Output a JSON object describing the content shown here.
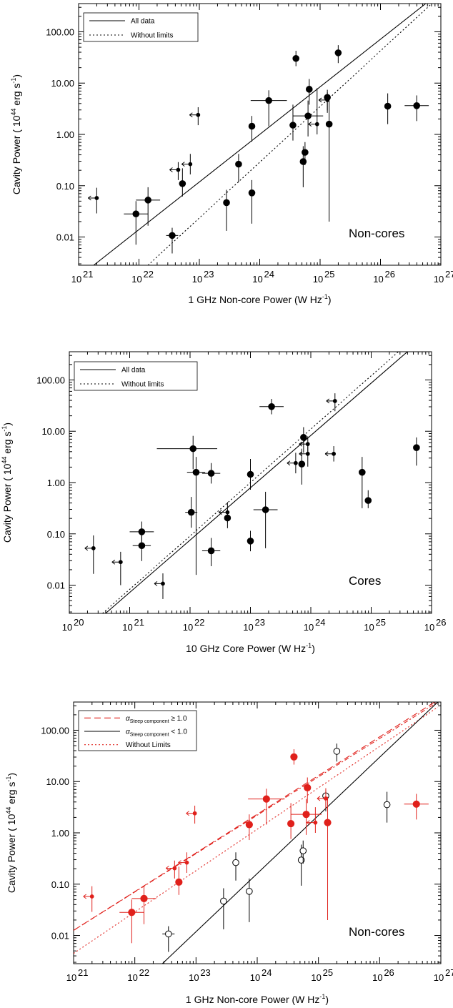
{
  "chart_data": [
    {
      "type": "scatter",
      "label": "Non-cores",
      "xlabel_main": "1 GHz Non-core Power (W Hz",
      "xlabel_sup": "-1",
      "xlabel_end": ")",
      "ylabel_main": "Cavity Power ( 10",
      "ylabel_sup": "44",
      "ylabel_end": " erg s",
      "ylabel_sup2": "-1",
      "ylabel_close": ")",
      "x_log_range": [
        21,
        27
      ],
      "y_log_range": [
        -2.55,
        2.55
      ],
      "x_tick_labels": [
        "10",
        "10",
        "10",
        "10",
        "10",
        "10",
        "10"
      ],
      "x_tick_exps": [
        "21",
        "22",
        "23",
        "24",
        "25",
        "26",
        "27"
      ],
      "y_tick_labels": [
        "0.01",
        "0.10",
        "1.00",
        "10.00",
        "100.00"
      ],
      "legend": [
        {
          "label": "All data",
          "style": "solid",
          "color": "#000000"
        },
        {
          "label": "Without limits",
          "style": "dotted",
          "color": "#000000"
        }
      ],
      "lines": [
        {
          "style": "solid",
          "color": "#000000",
          "x": [
            21.25,
            26.75
          ],
          "y": [
            -2.55,
            2.55
          ]
        },
        {
          "style": "dotted",
          "color": "#000000",
          "x": [
            22.15,
            26.85
          ],
          "y": [
            -2.55,
            2.55
          ]
        }
      ],
      "points": [
        {
          "x": 21.95,
          "y": -1.55,
          "xlo": 0.2,
          "xhi": 0.2,
          "ylo": 0.6,
          "yhi": 0.25
        },
        {
          "x": 22.15,
          "y": -1.28,
          "xlo": 0.2,
          "xhi": 0.2,
          "ylo": 0.5,
          "yhi": 0.25
        },
        {
          "x": 22.55,
          "y": -1.97,
          "xlo": 0.1,
          "xhi": 0.1,
          "ylo": 0.35,
          "yhi": 0.15
        },
        {
          "x": 22.72,
          "y": -0.96,
          "xlo": 0,
          "xhi": 0,
          "ylo": 0.25,
          "yhi": 0.3
        },
        {
          "x": 23.45,
          "y": -1.33,
          "xlo": 0,
          "xhi": 0,
          "ylo": 0.55,
          "yhi": 0.25
        },
        {
          "x": 23.65,
          "y": -0.58,
          "xlo": 0,
          "xhi": 0,
          "ylo": 0.35,
          "yhi": 0.2
        },
        {
          "x": 23.87,
          "y": -1.14,
          "xlo": 0,
          "xhi": 0,
          "ylo": 0.6,
          "yhi": 0.25
        },
        {
          "x": 23.87,
          "y": 0.16,
          "xlo": 0,
          "xhi": 0,
          "ylo": 0.3,
          "yhi": 0.2
        },
        {
          "x": 24.15,
          "y": 0.66,
          "xlo": 0.3,
          "xhi": 0.3,
          "ylo": 0.5,
          "yhi": 0.2
        },
        {
          "x": 24.55,
          "y": 0.18,
          "xlo": 0,
          "xhi": 0,
          "ylo": 0.3,
          "yhi": 0.4
        },
        {
          "x": 24.6,
          "y": 1.48,
          "xlo": 0,
          "xhi": 0,
          "ylo": 0.15,
          "yhi": 0.15
        },
        {
          "x": 24.72,
          "y": -0.53,
          "xlo": 0,
          "xhi": 0,
          "ylo": 0.5,
          "yhi": 0.3
        },
        {
          "x": 24.75,
          "y": -0.35,
          "xlo": 0,
          "xhi": 0,
          "ylo": 0.25,
          "yhi": 0.2
        },
        {
          "x": 24.8,
          "y": 0.36,
          "xlo": 0.25,
          "xhi": 0.25,
          "ylo": 0.4,
          "yhi": 0.3
        },
        {
          "x": 24.82,
          "y": 0.88,
          "xlo": 0,
          "xhi": 0,
          "ylo": 0.3,
          "yhi": 0.2
        },
        {
          "x": 25.12,
          "y": 0.72,
          "xlo": 0,
          "xhi": 0,
          "ylo": 0.3,
          "yhi": 0.1
        },
        {
          "x": 25.15,
          "y": 0.2,
          "xlo": 0,
          "xhi": 0,
          "ylo": 1.9,
          "yhi": 0.5
        },
        {
          "x": 25.3,
          "y": 1.59,
          "xlo": 0,
          "xhi": 0,
          "ylo": 0.2,
          "yhi": 0.15
        },
        {
          "x": 26.12,
          "y": 0.55,
          "xlo": 0,
          "xhi": 0,
          "ylo": 0.35,
          "yhi": 0.25
        },
        {
          "x": 26.6,
          "y": 0.56,
          "xlo": 0.2,
          "xhi": 0.2,
          "ylo": 0.3,
          "yhi": 0.2
        }
      ],
      "upper_limits": [
        {
          "x": 21.3,
          "y": -1.24,
          "ylo": 0.3,
          "yhi": 0.2
        },
        {
          "x": 22.65,
          "y": -0.69,
          "ylo": 0.2,
          "yhi": 0.15
        },
        {
          "x": 22.85,
          "y": -0.58,
          "ylo": 0.2,
          "yhi": 0.2
        },
        {
          "x": 22.98,
          "y": 0.38,
          "ylo": 0.2,
          "yhi": 0.15
        },
        {
          "x": 24.95,
          "y": 0.2,
          "ylo": 0.2,
          "yhi": 0.7
        },
        {
          "x": 25.12,
          "y": 0.67,
          "ylo": 0.2,
          "yhi": 0.2
        }
      ]
    },
    {
      "type": "scatter",
      "label": "Cores",
      "xlabel_main": "10 GHz Core Power (W Hz",
      "xlabel_sup": "-1",
      "xlabel_end": ")",
      "ylabel_main": "Cavity Power ( 10",
      "ylabel_sup": "44",
      "ylabel_end": " erg s",
      "ylabel_sup2": "-1",
      "ylabel_close": ")",
      "x_log_range": [
        20,
        26
      ],
      "y_log_range": [
        -2.55,
        2.55
      ],
      "x_tick_labels": [
        "10",
        "10",
        "10",
        "10",
        "10",
        "10",
        "10"
      ],
      "x_tick_exps": [
        "20",
        "21",
        "22",
        "23",
        "24",
        "25",
        "26"
      ],
      "y_tick_labels": [
        "0.01",
        "0.10",
        "1.00",
        "10.00",
        "100.00"
      ],
      "legend": [
        {
          "label": "All data",
          "style": "solid",
          "color": "#000000"
        },
        {
          "label": "Without limits",
          "style": "dotted",
          "color": "#000000"
        }
      ],
      "lines": [
        {
          "style": "solid",
          "color": "#000000",
          "x": [
            20.6,
            25.6
          ],
          "y": [
            -2.55,
            2.55
          ]
        },
        {
          "style": "dotted",
          "color": "#000000",
          "x": [
            20.55,
            25.45
          ],
          "y": [
            -2.55,
            2.55
          ]
        }
      ],
      "points": [
        {
          "x": 21.2,
          "y": -0.96,
          "xlo": 0.2,
          "xhi": 0.2,
          "ylo": 0.2,
          "yhi": 0.2
        },
        {
          "x": 21.2,
          "y": -1.23,
          "xlo": 0.15,
          "xhi": 0.15,
          "ylo": 0.3,
          "yhi": 0.2
        },
        {
          "x": 22.02,
          "y": -0.58,
          "xlo": 0.1,
          "xhi": 0.1,
          "ylo": 0.3,
          "yhi": 0.3
        },
        {
          "x": 22.05,
          "y": 0.66,
          "xlo": 0.6,
          "xhi": 0.4,
          "ylo": 0.4,
          "yhi": 0.25
        },
        {
          "x": 22.1,
          "y": 0.2,
          "xlo": 0.15,
          "xhi": 0.15,
          "ylo": 2.0,
          "yhi": 0.3
        },
        {
          "x": 22.35,
          "y": 0.18,
          "xlo": 0.15,
          "xhi": 0.15,
          "ylo": 0.2,
          "yhi": 0.2
        },
        {
          "x": 22.35,
          "y": -1.33,
          "xlo": 0.15,
          "xhi": 0.15,
          "ylo": 0.3,
          "yhi": 0.25
        },
        {
          "x": 22.62,
          "y": -0.69,
          "xlo": 0,
          "xhi": 0,
          "ylo": 0.2,
          "yhi": 0.15
        },
        {
          "x": 23.0,
          "y": 0.16,
          "xlo": 0,
          "xhi": 0,
          "ylo": 0.3,
          "yhi": 0.3
        },
        {
          "x": 23.0,
          "y": -1.14,
          "xlo": 0,
          "xhi": 0,
          "ylo": 0.2,
          "yhi": 0.2
        },
        {
          "x": 23.25,
          "y": -0.53,
          "xlo": 0.2,
          "xhi": 0.2,
          "ylo": 0.75,
          "yhi": 0.35
        },
        {
          "x": 23.35,
          "y": 1.48,
          "xlo": 0.2,
          "xhi": 0.2,
          "ylo": 0.15,
          "yhi": 0.15
        },
        {
          "x": 23.85,
          "y": 0.36,
          "xlo": 0,
          "xhi": 0,
          "ylo": 0.4,
          "yhi": 0.3
        },
        {
          "x": 23.88,
          "y": 0.88,
          "xlo": 0,
          "xhi": 0,
          "ylo": 0.3,
          "yhi": 0.2
        },
        {
          "x": 24.85,
          "y": 0.2,
          "xlo": 0,
          "xhi": 0,
          "ylo": 0.7,
          "yhi": 0.3
        },
        {
          "x": 24.95,
          "y": -0.35,
          "xlo": 0,
          "xhi": 0,
          "ylo": 0.15,
          "yhi": 0.2
        },
        {
          "x": 25.75,
          "y": 0.68,
          "xlo": 0.05,
          "xhi": 0.05,
          "ylo": 0.35,
          "yhi": 0.2
        }
      ],
      "upper_limits": [
        {
          "x": 20.4,
          "y": -1.28,
          "ylo": 0.5,
          "yhi": 0.25
        },
        {
          "x": 20.85,
          "y": -1.55,
          "ylo": 0.45,
          "yhi": 0.2
        },
        {
          "x": 21.55,
          "y": -1.97,
          "ylo": 0.3,
          "yhi": 0.2
        },
        {
          "x": 22.62,
          "y": -0.58,
          "ylo": 0.2,
          "yhi": 0.2
        },
        {
          "x": 23.75,
          "y": 0.38,
          "ylo": 0.2,
          "yhi": 0.2
        },
        {
          "x": 23.95,
          "y": 0.56,
          "ylo": 0.25,
          "yhi": 0.15
        },
        {
          "x": 23.95,
          "y": 0.75,
          "ylo": 0.2,
          "yhi": 0.15
        },
        {
          "x": 24.38,
          "y": 0.56,
          "ylo": 0.15,
          "yhi": 0.15
        },
        {
          "x": 24.4,
          "y": 1.59,
          "ylo": 0.2,
          "yhi": 0.15
        }
      ]
    },
    {
      "type": "scatter",
      "label": "Non-cores",
      "xlabel_main": "1 GHz Non-core Power (W Hz",
      "xlabel_sup": "-1",
      "xlabel_end": ")",
      "ylabel_main": "Cavity Power ( 10",
      "ylabel_sup": "44",
      "ylabel_end": " erg s",
      "ylabel_sup2": "-1",
      "ylabel_close": ")",
      "x_log_range": [
        21,
        27
      ],
      "y_log_range": [
        -2.55,
        2.55
      ],
      "x_tick_labels": [
        "10",
        "10",
        "10",
        "10",
        "10",
        "10",
        "10"
      ],
      "x_tick_exps": [
        "21",
        "22",
        "23",
        "24",
        "25",
        "26",
        "27"
      ],
      "y_tick_labels": [
        "0.01",
        "0.10",
        "1.00",
        "10.00",
        "100.00"
      ],
      "legend": [
        {
          "label": "α",
          "sub": "Steep component",
          "rel": " ≥ 1.0",
          "style": "dashed",
          "color": "#e0201b"
        },
        {
          "label": "α",
          "sub": "Steep component",
          "rel": " < 1.0",
          "style": "solid",
          "color": "#000000"
        },
        {
          "label": "Without Limits",
          "sub": "",
          "rel": "",
          "style": "dotted",
          "color": "#e0201b"
        }
      ],
      "lines": [
        {
          "style": "dashed",
          "color": "#e0201b",
          "x": [
            21.0,
            26.9
          ],
          "y": [
            -1.9,
            2.55
          ]
        },
        {
          "style": "dotdash",
          "color": "#e0201b",
          "x": [
            21.0,
            26.95
          ],
          "y": [
            -1.9,
            2.55
          ]
        },
        {
          "style": "dotted",
          "color": "#e0201b",
          "x": [
            21.0,
            26.95
          ],
          "y": [
            -2.35,
            2.45
          ]
        },
        {
          "style": "solid",
          "color": "#000000",
          "x": [
            22.45,
            26.95
          ],
          "y": [
            -2.55,
            2.55
          ]
        }
      ],
      "red_points": [
        {
          "x": 21.95,
          "y": -1.55,
          "xlo": 0.2,
          "xhi": 0.2,
          "ylo": 0.6,
          "yhi": 0.25
        },
        {
          "x": 22.15,
          "y": -1.28,
          "xlo": 0.2,
          "xhi": 0.2,
          "ylo": 0.5,
          "yhi": 0.25
        },
        {
          "x": 22.72,
          "y": -0.96,
          "xlo": 0,
          "xhi": 0,
          "ylo": 0.25,
          "yhi": 0.3
        },
        {
          "x": 23.87,
          "y": 0.16,
          "xlo": 0,
          "xhi": 0,
          "ylo": 0.3,
          "yhi": 0.2
        },
        {
          "x": 24.15,
          "y": 0.66,
          "xlo": 0.3,
          "xhi": 0.3,
          "ylo": 0.5,
          "yhi": 0.2
        },
        {
          "x": 24.6,
          "y": 1.48,
          "xlo": 0,
          "xhi": 0,
          "ylo": 0.15,
          "yhi": 0.15
        },
        {
          "x": 24.55,
          "y": 0.18,
          "xlo": 0,
          "xhi": 0,
          "ylo": 0.3,
          "yhi": 0.4
        },
        {
          "x": 24.8,
          "y": 0.36,
          "xlo": 0.25,
          "xhi": 0.25,
          "ylo": 0.4,
          "yhi": 0.3
        },
        {
          "x": 24.82,
          "y": 0.88,
          "xlo": 0,
          "xhi": 0,
          "ylo": 0.3,
          "yhi": 0.2
        },
        {
          "x": 25.15,
          "y": 0.2,
          "xlo": 0,
          "xhi": 0,
          "ylo": 1.9,
          "yhi": 0.5
        },
        {
          "x": 26.6,
          "y": 0.56,
          "xlo": 0.2,
          "xhi": 0.2,
          "ylo": 0.3,
          "yhi": 0.2
        }
      ],
      "red_limits": [
        {
          "x": 21.3,
          "y": -1.24,
          "ylo": 0.3,
          "yhi": 0.2
        },
        {
          "x": 22.65,
          "y": -0.69,
          "ylo": 0.2,
          "yhi": 0.15
        },
        {
          "x": 22.85,
          "y": -0.58,
          "ylo": 0.2,
          "yhi": 0.2
        },
        {
          "x": 22.98,
          "y": 0.38,
          "ylo": 0.2,
          "yhi": 0.15
        },
        {
          "x": 24.95,
          "y": 0.2,
          "ylo": 0.2,
          "yhi": 0.3
        },
        {
          "x": 25.12,
          "y": 0.67,
          "ylo": 0.2,
          "yhi": 0.2
        }
      ],
      "open_points": [
        {
          "x": 22.55,
          "y": -1.97,
          "xlo": 0.1,
          "xhi": 0.1,
          "ylo": 0.35,
          "yhi": 0.15
        },
        {
          "x": 23.45,
          "y": -1.33,
          "xlo": 0,
          "xhi": 0,
          "ylo": 0.55,
          "yhi": 0.25
        },
        {
          "x": 23.65,
          "y": -0.58,
          "xlo": 0,
          "xhi": 0,
          "ylo": 0.35,
          "yhi": 0.2
        },
        {
          "x": 23.87,
          "y": -1.14,
          "xlo": 0,
          "xhi": 0,
          "ylo": 0.6,
          "yhi": 0.25
        },
        {
          "x": 24.72,
          "y": -0.53,
          "xlo": 0,
          "xhi": 0,
          "ylo": 0.5,
          "yhi": 0.3
        },
        {
          "x": 24.75,
          "y": -0.35,
          "xlo": 0,
          "xhi": 0,
          "ylo": 0.25,
          "yhi": 0.2
        },
        {
          "x": 25.12,
          "y": 0.72,
          "xlo": 0,
          "xhi": 0,
          "ylo": 0.3,
          "yhi": 0.1
        },
        {
          "x": 25.3,
          "y": 1.59,
          "xlo": 0,
          "xhi": 0,
          "ylo": 0.2,
          "yhi": 0.15
        },
        {
          "x": 26.12,
          "y": 0.55,
          "xlo": 0,
          "xhi": 0,
          "ylo": 0.35,
          "yhi": 0.25
        }
      ]
    }
  ]
}
